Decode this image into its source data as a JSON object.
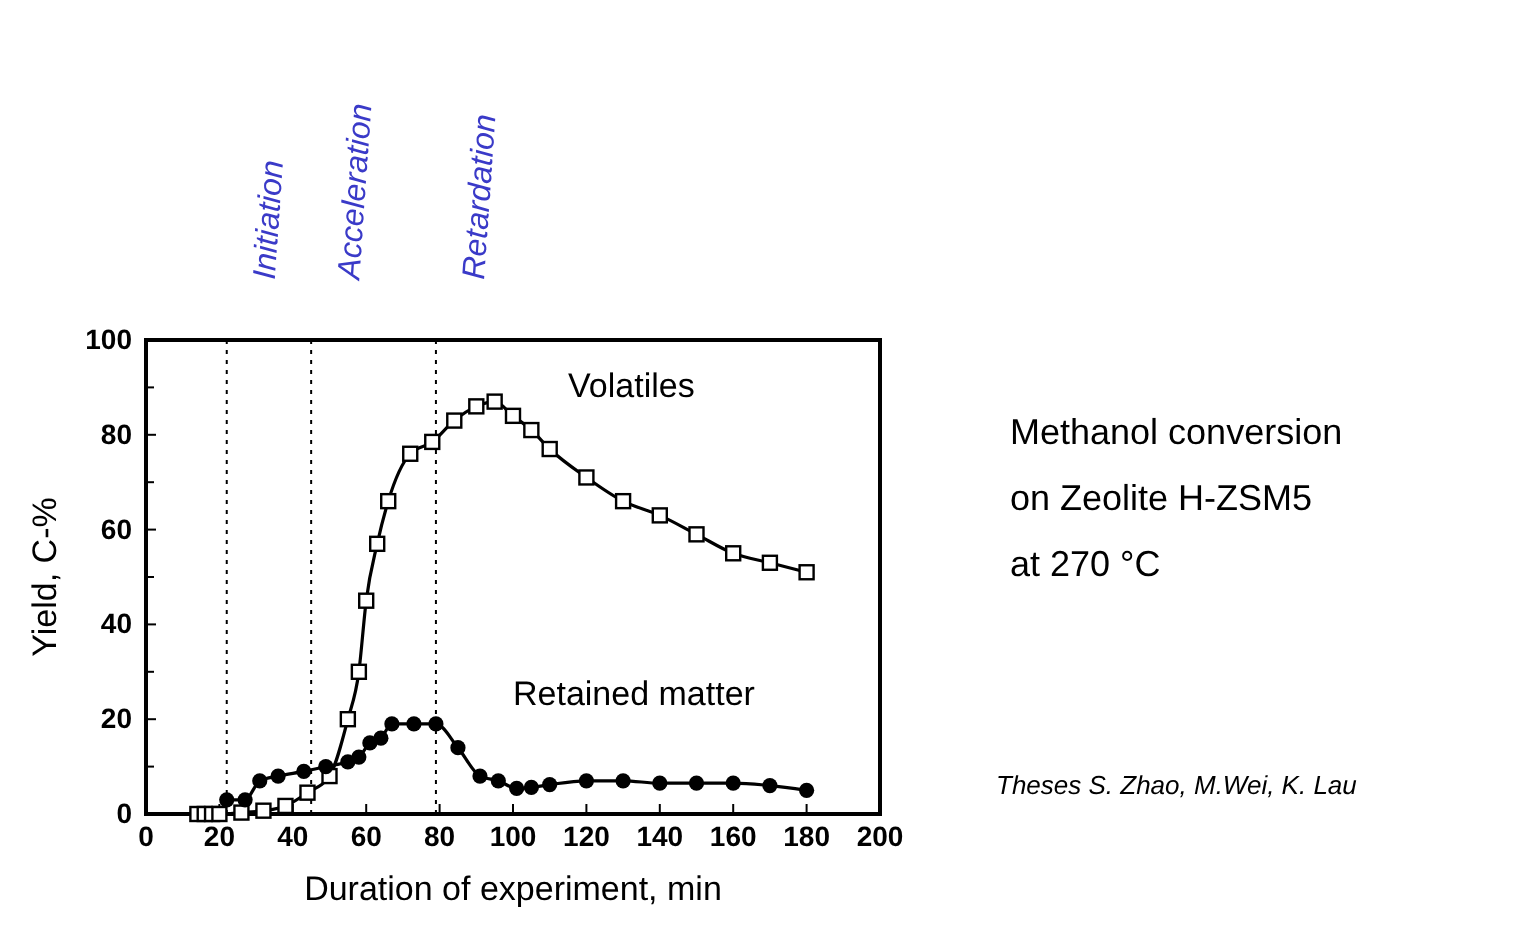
{
  "chart_data": {
    "type": "line",
    "xlabel": "Duration of experiment, min",
    "ylabel": "Yield, C-%",
    "xlim": [
      0,
      200
    ],
    "xticks": [
      0,
      20,
      40,
      60,
      80,
      100,
      120,
      140,
      160,
      180,
      200
    ],
    "ylim": [
      0,
      100
    ],
    "yticks": [
      0,
      {
        "value": 10,
        "label": null
      },
      20,
      {
        "value": 30,
        "label": null
      },
      40,
      {
        "value": 50,
        "label": null
      },
      60,
      {
        "value": 70,
        "label": null
      },
      80,
      {
        "value": 90,
        "label": null
      },
      100
    ],
    "grid": false,
    "line_style": "solid",
    "series": [
      {
        "name": "Volatiles",
        "color": "#000000",
        "marker": "square",
        "x": [
          14,
          16,
          18,
          20,
          26,
          32,
          38,
          44,
          50,
          55,
          58,
          60,
          63,
          66,
          72,
          78,
          84,
          90,
          95,
          100,
          105,
          110,
          120,
          130,
          140,
          150,
          160,
          170,
          180
        ],
        "values": [
          0,
          0,
          0,
          0,
          0.3,
          0.7,
          1.7,
          4.5,
          8,
          20,
          30,
          45,
          57,
          66,
          76,
          78.5,
          83,
          86,
          87,
          84,
          81,
          77,
          71,
          66,
          63,
          59,
          55,
          53,
          51
        ]
      },
      {
        "name": "Retained matter",
        "color": "#000000",
        "marker": "circle",
        "x": [
          22,
          27,
          31,
          36,
          43,
          49,
          55,
          58,
          61,
          64,
          67,
          73,
          79,
          85,
          91,
          96,
          101,
          105,
          110,
          120,
          130,
          140,
          150,
          160,
          170,
          180
        ],
        "values": [
          3,
          3,
          7,
          8,
          9,
          10,
          11,
          12,
          15,
          16,
          19,
          19,
          19,
          14,
          8,
          7,
          5.4,
          5.6,
          6.2,
          7,
          7,
          6.5,
          6.5,
          6.5,
          6,
          5
        ]
      }
    ],
    "ref_lines": [
      {
        "axis": "x",
        "value": 22,
        "label": "Initiation",
        "line_style": "dotted"
      },
      {
        "axis": "x",
        "value": 45,
        "label": "Acceleration",
        "line_style": "dotted"
      },
      {
        "axis": "x",
        "value": 79,
        "label": "Retardation",
        "line_style": "dotted"
      }
    ],
    "annotations": [
      "Methanol conversion",
      "on Zeolite H-ZSM5",
      "at 270 °C",
      "Theses S. Zhao, M.Wei, K. Lau"
    ]
  }
}
